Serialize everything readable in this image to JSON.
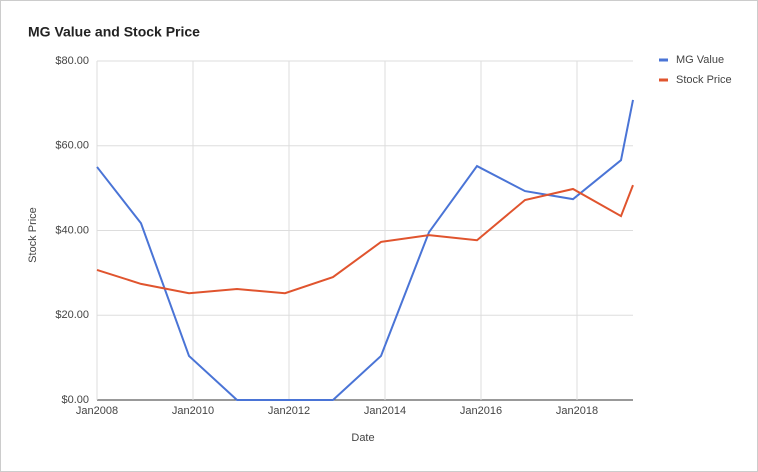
{
  "chart_data": {
    "type": "line",
    "title": "MG Value and Stock Price",
    "x_label": "Date",
    "y_label": "Stock Price",
    "x": [
      "Jan2008",
      "Dec2008",
      "Dec2009",
      "Dec2010",
      "Dec2011",
      "Dec2012",
      "Dec2013",
      "Dec2014",
      "Dec2015",
      "Dec2016",
      "Dec2017",
      "Dec2018",
      "Mar2019"
    ],
    "series": [
      {
        "name": "MG Value",
        "color": "#4a74d6",
        "values": [
          55,
          41.7,
          10.4,
          0,
          0,
          0,
          10.4,
          39.6,
          55.2,
          49.3,
          47.4,
          56.6,
          70.8
        ]
      },
      {
        "name": "Stock Price",
        "color": "#e0542e",
        "values": [
          30.7,
          27.4,
          25.2,
          26.2,
          25.2,
          29,
          37.3,
          38.9,
          37.7,
          47.2,
          49.8,
          43.4,
          50.7
        ]
      }
    ],
    "xlim": [
      "Jan2008",
      "Mar2019"
    ],
    "xticks": [
      "Jan2008",
      "Jan2010",
      "Jan2012",
      "Jan2014",
      "Jan2016",
      "Jan2018"
    ],
    "ylim": [
      0,
      80
    ],
    "yticks": [
      {
        "value": 0,
        "label": "$0.00"
      },
      {
        "value": 20,
        "label": "$20.00"
      },
      {
        "value": 40,
        "label": "$40.00"
      },
      {
        "value": 60,
        "label": "$60.00"
      },
      {
        "value": 80,
        "label": "$80.00"
      }
    ],
    "grid": true,
    "legend": "right"
  }
}
